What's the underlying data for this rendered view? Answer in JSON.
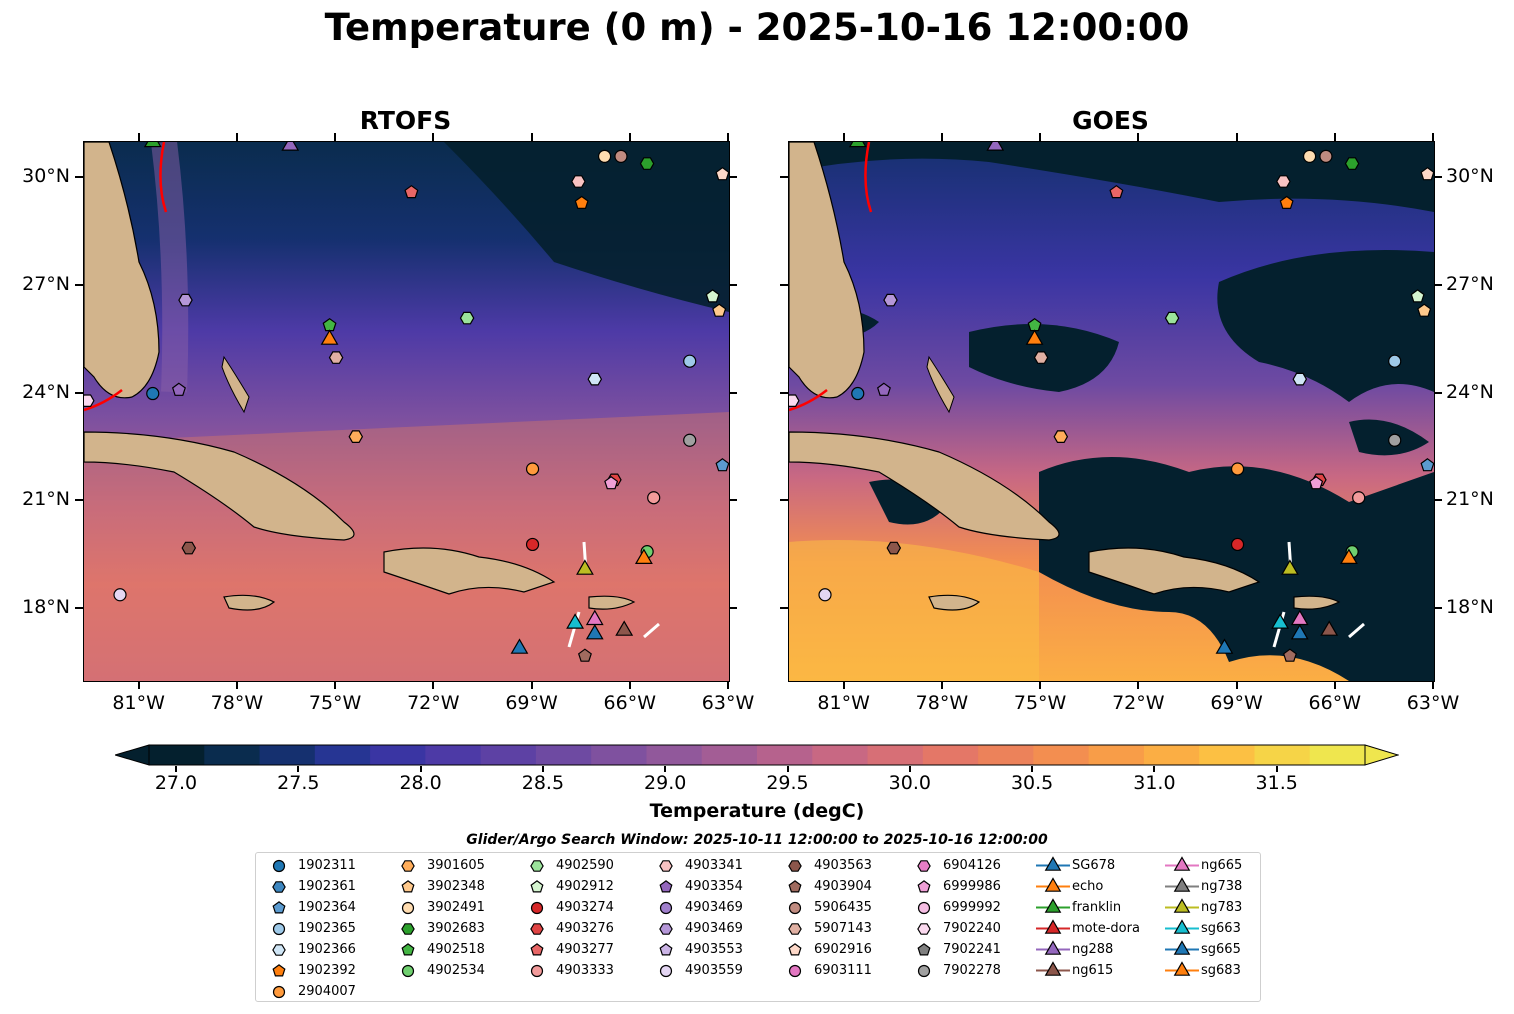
{
  "title": "Temperature (0 m) - 2025-10-16 12:00:00",
  "panels": [
    {
      "title": "RTOFS"
    },
    {
      "title": "GOES"
    }
  ],
  "axes": {
    "lon_ticks": [
      "81°W",
      "78°W",
      "75°W",
      "72°W",
      "69°W",
      "66°W",
      "63°W"
    ],
    "lat_ticks": [
      "30°N",
      "27°N",
      "24°N",
      "21°N",
      "18°N"
    ]
  },
  "colorbar": {
    "label": "Temperature (degC)",
    "ticks": [
      "27.0",
      "27.5",
      "28.0",
      "28.5",
      "29.0",
      "29.5",
      "30.0",
      "30.5",
      "31.0",
      "31.5"
    ],
    "colors": [
      "#04202e",
      "#0a2c4e",
      "#15306f",
      "#263593",
      "#3a35a3",
      "#4d3aa6",
      "#5d41a4",
      "#6e4aa2",
      "#7f519f",
      "#91589b",
      "#a35d95",
      "#b6628d",
      "#c86883",
      "#d76f76",
      "#e47767",
      "#ec825a",
      "#f38e50",
      "#f89d48",
      "#fbae44",
      "#fcc043",
      "#f6d447",
      "#efe64e"
    ]
  },
  "legend": {
    "title": "Glider/Argo Search Window: 2025-10-11 12:00:00 to 2025-10-16 12:00:00",
    "columns": [
      [
        {
          "label": "1902311",
          "shape": "circle",
          "color": "#1f77b4"
        },
        {
          "label": "1902361",
          "shape": "hexagon",
          "color": "#3d86bf"
        },
        {
          "label": "1902364",
          "shape": "pentagon",
          "color": "#5b9bd0"
        },
        {
          "label": "1902365",
          "shape": "circle",
          "color": "#9ec9e8"
        },
        {
          "label": "1902366",
          "shape": "hexagon",
          "color": "#cfe5f5"
        },
        {
          "label": "1902392",
          "shape": "pentagon",
          "color": "#ff7f0e"
        },
        {
          "label": "2904007",
          "shape": "circle",
          "color": "#ff9a3c"
        }
      ],
      [
        {
          "label": "3901605",
          "shape": "hexagon",
          "color": "#ffad5a"
        },
        {
          "label": "3902348",
          "shape": "pentagon",
          "color": "#ffc98c"
        },
        {
          "label": "3902491",
          "shape": "circle",
          "color": "#ffdcb0"
        },
        {
          "label": "3902683",
          "shape": "hexagon",
          "color": "#2ca02c"
        },
        {
          "label": "4902518",
          "shape": "pentagon",
          "color": "#43b543"
        },
        {
          "label": "4902534",
          "shape": "circle",
          "color": "#6fcf6f"
        }
      ],
      [
        {
          "label": "4902590",
          "shape": "hexagon",
          "color": "#9be39b"
        },
        {
          "label": "4902912",
          "shape": "pentagon",
          "color": "#d5f5d0"
        },
        {
          "label": "4903274",
          "shape": "circle",
          "color": "#d62728"
        },
        {
          "label": "4903276",
          "shape": "hexagon",
          "color": "#e04444"
        },
        {
          "label": "4903277",
          "shape": "pentagon",
          "color": "#e86666"
        },
        {
          "label": "4903333",
          "shape": "circle",
          "color": "#f29b9b"
        }
      ],
      [
        {
          "label": "4903341",
          "shape": "hexagon",
          "color": "#f8c2c2"
        },
        {
          "label": "4903354",
          "shape": "pentagon",
          "color": "#9467bd"
        },
        {
          "label": "4903469",
          "shape": "circle",
          "color": "#a07fcc"
        },
        {
          "label": "4903469",
          "shape": "hexagon",
          "color": "#b597d8"
        },
        {
          "label": "4903553",
          "shape": "pentagon",
          "color": "#cbb4e6"
        },
        {
          "label": "4903559",
          "shape": "circle",
          "color": "#e4d6f3"
        }
      ],
      [
        {
          "label": "4903563",
          "shape": "hexagon",
          "color": "#8c564b"
        },
        {
          "label": "4903904",
          "shape": "pentagon",
          "color": "#a06b5f"
        },
        {
          "label": "5906435",
          "shape": "circle",
          "color": "#c08b80"
        },
        {
          "label": "5907143",
          "shape": "hexagon",
          "color": "#e0b0a3"
        },
        {
          "label": "6902916",
          "shape": "pentagon",
          "color": "#fdd8c8"
        },
        {
          "label": "6903111",
          "shape": "circle",
          "color": "#e377c2"
        }
      ],
      [
        {
          "label": "6904126",
          "shape": "hexagon",
          "color": "#e77ec6"
        },
        {
          "label": "6999986",
          "shape": "pentagon",
          "color": "#ef9fd6"
        },
        {
          "label": "6999992",
          "shape": "circle",
          "color": "#f5bde3"
        },
        {
          "label": "7902240",
          "shape": "hexagon",
          "color": "#fbd9ef"
        },
        {
          "label": "7902241",
          "shape": "pentagon",
          "color": "#7f7f7f"
        },
        {
          "label": "7902278",
          "shape": "circle",
          "color": "#a0a0a0"
        }
      ],
      [
        {
          "label": "SG678",
          "shape": "triangle",
          "color": "#1f77b4"
        },
        {
          "label": "echo",
          "shape": "triangle",
          "color": "#ff7f0e"
        },
        {
          "label": "franklin",
          "shape": "triangle",
          "color": "#2ca02c"
        },
        {
          "label": "mote-dora",
          "shape": "triangle",
          "color": "#d62728"
        },
        {
          "label": "ng288",
          "shape": "triangle",
          "color": "#9467bd"
        },
        {
          "label": "ng615",
          "shape": "triangle",
          "color": "#8c564b"
        }
      ],
      [
        {
          "label": "ng665",
          "shape": "triangle",
          "color": "#e377c2"
        },
        {
          "label": "ng738",
          "shape": "triangle",
          "color": "#7f7f7f"
        },
        {
          "label": "ng783",
          "shape": "triangle",
          "color": "#bcbd22"
        },
        {
          "label": "sg663",
          "shape": "triangle",
          "color": "#17becf"
        },
        {
          "label": "sg665",
          "shape": "triangle",
          "color": "#1f77b4"
        },
        {
          "label": "sg683",
          "shape": "triangle",
          "color": "#ff7f0e"
        }
      ]
    ]
  },
  "markers": [
    {
      "lon": -80.6,
      "lat": 24.0,
      "shape": "circle",
      "color": "#1f77b4"
    },
    {
      "lon": -63.2,
      "lat": 22.0,
      "shape": "pentagon",
      "color": "#5b9bd0"
    },
    {
      "lon": -64.2,
      "lat": 24.9,
      "shape": "circle",
      "color": "#9ec9e8"
    },
    {
      "lon": -67.1,
      "lat": 24.4,
      "shape": "hexagon",
      "color": "#cfe5f5"
    },
    {
      "lon": -67.5,
      "lat": 29.3,
      "shape": "pentagon",
      "color": "#ff7f0e"
    },
    {
      "lon": -69.0,
      "lat": 21.9,
      "shape": "circle",
      "color": "#ff9a3c"
    },
    {
      "lon": -74.4,
      "lat": 22.8,
      "shape": "hexagon",
      "color": "#ffad5a"
    },
    {
      "lon": -63.3,
      "lat": 26.3,
      "shape": "pentagon",
      "color": "#ffc98c"
    },
    {
      "lon": -66.8,
      "lat": 30.6,
      "shape": "circle",
      "color": "#ffdcb0"
    },
    {
      "lon": -65.5,
      "lat": 30.4,
      "shape": "hexagon",
      "color": "#2ca02c"
    },
    {
      "lon": -75.2,
      "lat": 25.9,
      "shape": "pentagon",
      "color": "#43b543"
    },
    {
      "lon": -65.5,
      "lat": 19.6,
      "shape": "circle",
      "color": "#6fcf6f"
    },
    {
      "lon": -71.0,
      "lat": 26.1,
      "shape": "hexagon",
      "color": "#9be39b"
    },
    {
      "lon": -63.5,
      "lat": 26.7,
      "shape": "pentagon",
      "color": "#d5f5d0"
    },
    {
      "lon": -69.0,
      "lat": 19.8,
      "shape": "circle",
      "color": "#d62728"
    },
    {
      "lon": -66.5,
      "lat": 21.6,
      "shape": "hexagon",
      "color": "#e04444"
    },
    {
      "lon": -72.7,
      "lat": 29.6,
      "shape": "pentagon",
      "color": "#e86666"
    },
    {
      "lon": -65.3,
      "lat": 21.1,
      "shape": "circle",
      "color": "#f29b9b"
    },
    {
      "lon": -67.6,
      "lat": 29.9,
      "shape": "hexagon",
      "color": "#f8c2c2"
    },
    {
      "lon": -79.8,
      "lat": 24.1,
      "shape": "pentagon",
      "color": "#9467bd"
    },
    {
      "lon": -79.6,
      "lat": 26.6,
      "shape": "hexagon",
      "color": "#b597d8"
    },
    {
      "lon": -81.6,
      "lat": 18.4,
      "shape": "circle",
      "color": "#e4d6f3"
    },
    {
      "lon": -79.5,
      "lat": 19.7,
      "shape": "hexagon",
      "color": "#8c564b"
    },
    {
      "lon": -67.4,
      "lat": 16.7,
      "shape": "pentagon",
      "color": "#a06b5f"
    },
    {
      "lon": -66.3,
      "lat": 30.6,
      "shape": "circle",
      "color": "#c08b80"
    },
    {
      "lon": -75.0,
      "lat": 25.0,
      "shape": "hexagon",
      "color": "#e0b0a3"
    },
    {
      "lon": -63.2,
      "lat": 30.1,
      "shape": "pentagon",
      "color": "#fdd8c8"
    },
    {
      "lon": -66.6,
      "lat": 21.5,
      "shape": "pentagon",
      "color": "#ef9fd6"
    },
    {
      "lon": -82.6,
      "lat": 23.8,
      "shape": "hexagon",
      "color": "#fbd9ef"
    },
    {
      "lon": -64.2,
      "lat": 22.7,
      "shape": "circle",
      "color": "#a0a0a0"
    },
    {
      "lon": -69.4,
      "lat": 16.9,
      "shape": "triangle",
      "color": "#1f77b4"
    },
    {
      "lon": -75.2,
      "lat": 25.5,
      "shape": "triangle",
      "color": "#ff7f0e"
    },
    {
      "lon": -80.6,
      "lat": 31.0,
      "shape": "triangle",
      "color": "#2ca02c"
    },
    {
      "lon": -76.4,
      "lat": 30.9,
      "shape": "triangle",
      "color": "#9467bd"
    },
    {
      "lon": -66.2,
      "lat": 17.4,
      "shape": "triangle",
      "color": "#8c564b"
    },
    {
      "lon": -67.1,
      "lat": 17.7,
      "shape": "triangle",
      "color": "#e377c2"
    },
    {
      "lon": -67.4,
      "lat": 19.1,
      "shape": "triangle",
      "color": "#bcbd22"
    },
    {
      "lon": -67.7,
      "lat": 17.6,
      "shape": "triangle",
      "color": "#17becf"
    },
    {
      "lon": -67.1,
      "lat": 17.3,
      "shape": "triangle",
      "color": "#1f77b4"
    },
    {
      "lon": -65.6,
      "lat": 19.4,
      "shape": "triangle",
      "color": "#ff7f0e"
    }
  ]
}
